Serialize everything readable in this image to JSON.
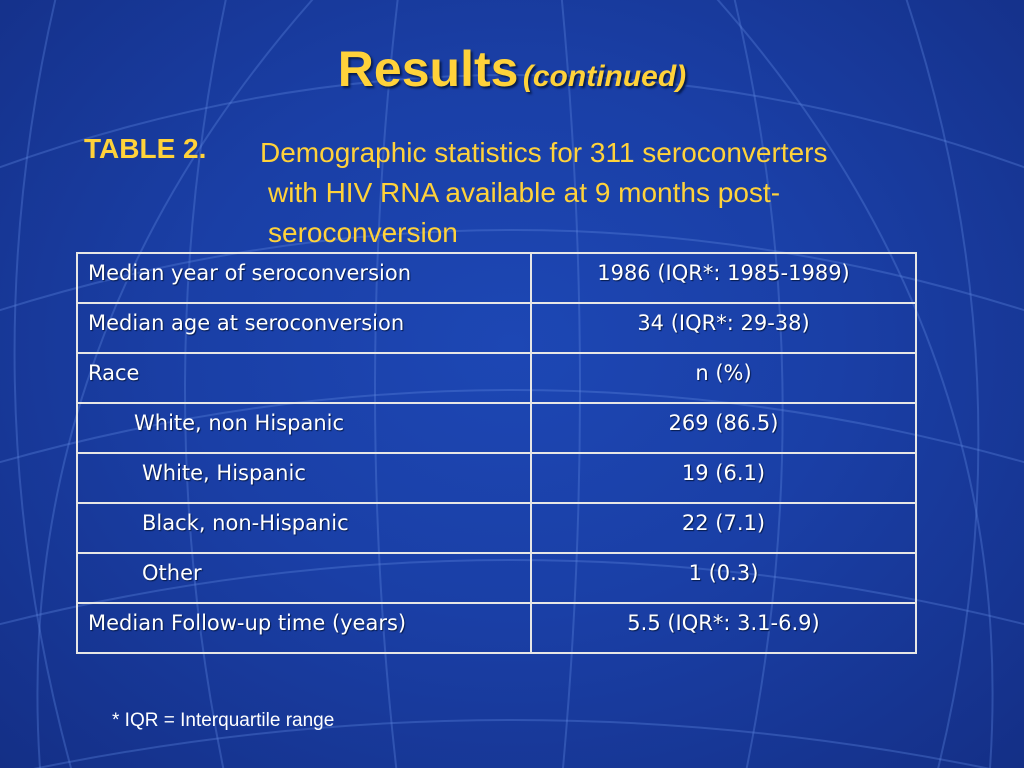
{
  "slide": {
    "title": "Results",
    "title_sub": "(continued)",
    "table_label": "TABLE 2.",
    "caption_lines": [
      "Demographic statistics for 311 seroconverters",
      "with HIV RNA available at 9 months post-",
      "seroconversion"
    ],
    "footnote": "* IQR = Interquartile range"
  },
  "table": {
    "rows": [
      {
        "label": "Median year of seroconversion",
        "value": "1986 (IQR*: 1985-1989)"
      },
      {
        "label": "Median age at seroconversion",
        "value": "34 (IQR*: 29-38)"
      },
      {
        "label": "Race",
        "value": "n (%)"
      },
      {
        "label": "White, non Hispanic",
        "value": "269 (86.5)"
      },
      {
        "label": "White, Hispanic",
        "value": "19 (6.1)"
      },
      {
        "label": "Black, non-Hispanic",
        "value": "22 (7.1)"
      },
      {
        "label": "Other",
        "value": "1 (0.3)"
      },
      {
        "label": "Median Follow-up time (years)",
        "value": "5.5 (IQR*: 3.1-6.9)"
      }
    ]
  },
  "colors": {
    "background": "#1a3fa6",
    "title_text": "#ffd23a",
    "body_text": "#ffffff",
    "grid_lines": "#e6e6e6"
  }
}
